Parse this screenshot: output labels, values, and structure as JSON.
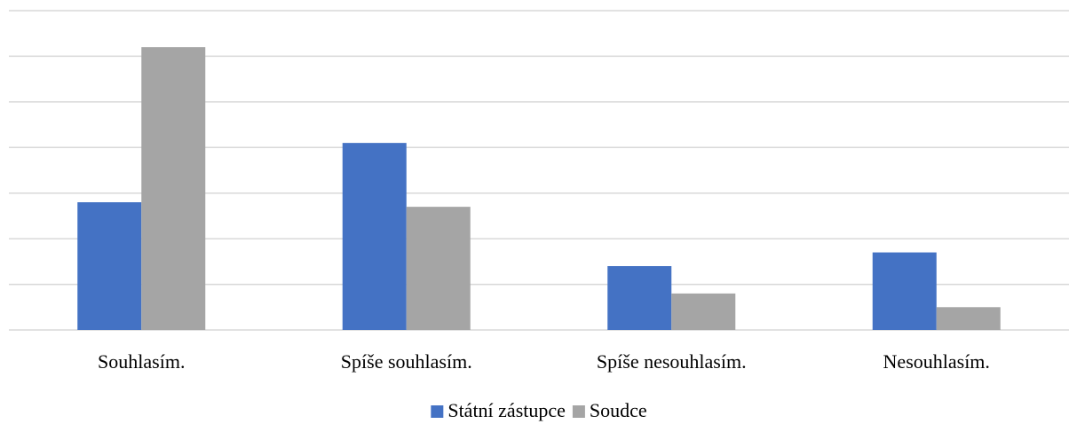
{
  "chart_data": {
    "type": "bar",
    "categories": [
      "Souhlasím.",
      "Spíše souhlasím.",
      "Spíše nesouhlasím.",
      "Nesouhlasím."
    ],
    "series": [
      {
        "name": "Státní zástupce",
        "color": "#4472c4",
        "values": [
          2.8,
          4.1,
          1.4,
          1.7
        ]
      },
      {
        "name": "Soudce",
        "color": "#a5a5a5",
        "values": [
          6.2,
          2.7,
          0.8,
          0.5
        ]
      }
    ],
    "ylim": [
      0,
      7
    ],
    "yticks": [
      0,
      1,
      2,
      3,
      4,
      5,
      6,
      7
    ],
    "grid": true,
    "legend": "bottom"
  }
}
